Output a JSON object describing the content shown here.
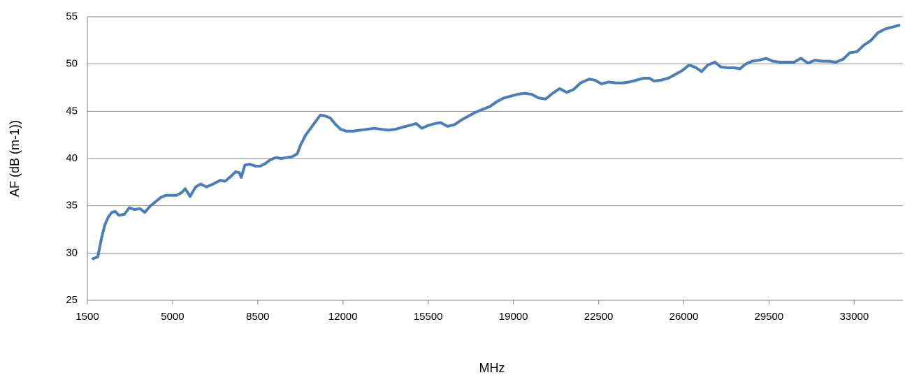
{
  "chart_data": {
    "type": "line",
    "x_label": "MHz",
    "y_label": "AF (dB (m-1))",
    "x": [
      1730,
      1930,
      2075,
      2220,
      2360,
      2500,
      2650,
      2790,
      3020,
      3220,
      3430,
      3660,
      3860,
      4090,
      4290,
      4520,
      4720,
      4950,
      5150,
      5380,
      5520,
      5720,
      5950,
      6160,
      6390,
      6670,
      6960,
      7160,
      7390,
      7590,
      7740,
      7820,
      7970,
      8170,
      8400,
      8600,
      8830,
      9030,
      9260,
      9460,
      9690,
      9920,
      10120,
      10270,
      10470,
      10700,
      10900,
      11070,
      11270,
      11470,
      11700,
      11900,
      12130,
      12420,
      12710,
      13000,
      13280,
      13570,
      13860,
      14150,
      14430,
      14720,
      15010,
      15240,
      15500,
      15780,
      16010,
      16300,
      16590,
      16880,
      17160,
      17450,
      17740,
      18030,
      18310,
      18600,
      18890,
      19180,
      19460,
      19750,
      20040,
      20330,
      20610,
      20900,
      21190,
      21470,
      21760,
      22110,
      22340,
      22620,
      22910,
      23200,
      23490,
      23770,
      24060,
      24350,
      24580,
      24780,
      25070,
      25360,
      25650,
      25930,
      26220,
      26510,
      26730,
      26990,
      27280,
      27510,
      27800,
      28080,
      28310,
      28540,
      28800,
      29090,
      29380,
      29660,
      29950,
      30240,
      30530,
      30810,
      31100,
      31390,
      31670,
      31960,
      32250,
      32540,
      32820,
      33110,
      33400,
      33690,
      33970,
      34260,
      34550,
      34840
    ],
    "series": [
      {
        "color": "#4a7ebb",
        "values": [
          29.4,
          29.6,
          31.5,
          33,
          33.8,
          34.3,
          34.4,
          34.0,
          34.1,
          34.8,
          34.6,
          34.7,
          34.3,
          35.0,
          35.4,
          35.9,
          36.1,
          36.1,
          36.1,
          36.4,
          36.8,
          36.0,
          37.0,
          37.3,
          37.0,
          37.3,
          37.7,
          37.6,
          38.1,
          38.6,
          38.5,
          38.0,
          39.3,
          39.4,
          39.2,
          39.2,
          39.5,
          39.9,
          40.1,
          40.0,
          40.1,
          40.2,
          40.5,
          41.5,
          42.5,
          43.3,
          44.0,
          44.6,
          44.5,
          44.3,
          43.6,
          43.1,
          42.9,
          42.9,
          43.0,
          43.1,
          43.2,
          43.1,
          43.0,
          43.1,
          43.3,
          43.5,
          43.7,
          43.2,
          43.5,
          43.7,
          43.8,
          43.4,
          43.6,
          44.1,
          44.5,
          44.9,
          45.2,
          45.5,
          46.0,
          46.4,
          46.6,
          46.8,
          46.9,
          46.8,
          46.4,
          46.3,
          46.9,
          47.4,
          47.0,
          47.3,
          48.0,
          48.4,
          48.3,
          47.9,
          48.1,
          48.0,
          48.0,
          48.1,
          48.3,
          48.5,
          48.5,
          48.2,
          48.3,
          48.5,
          48.9,
          49.3,
          49.9,
          49.6,
          49.2,
          49.9,
          50.2,
          49.7,
          49.6,
          49.6,
          49.5,
          50.0,
          50.3,
          50.4,
          50.6,
          50.3,
          50.2,
          50.2,
          50.2,
          50.6,
          50.1,
          50.4,
          50.3,
          50.3,
          50.2,
          50.5,
          51.2,
          51.3,
          52.0,
          52.5,
          53.3,
          53.7,
          53.9,
          54.1
        ]
      }
    ],
    "xlim": [
      1500,
      35000
    ],
    "xticks": [
      1500,
      5000,
      8500,
      12000,
      15500,
      19000,
      22500,
      26000,
      29500,
      33000
    ],
    "ylim": [
      25,
      55
    ],
    "yticks": [
      25,
      30,
      35,
      40,
      45,
      50,
      55
    ],
    "grid": true
  }
}
